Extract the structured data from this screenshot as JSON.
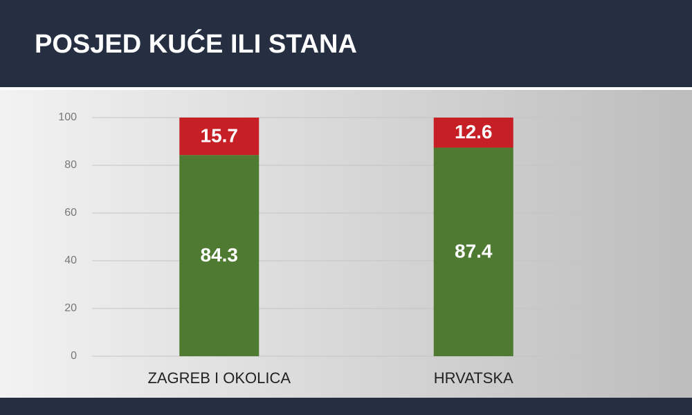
{
  "chart_data": {
    "type": "bar",
    "stacked": true,
    "title": "POSJED KUĆE ILI STANA",
    "categories": [
      "ZAGREB I OKOLICA",
      "HRVATSKA"
    ],
    "series": [
      {
        "color": "#4e7a32",
        "values": [
          84.3,
          87.4
        ]
      },
      {
        "color": "#c62026",
        "values": [
          15.7,
          12.6
        ]
      }
    ],
    "ylim": [
      0,
      100
    ],
    "yticks": [
      0,
      20,
      40,
      60,
      80,
      100
    ],
    "grid": true
  }
}
